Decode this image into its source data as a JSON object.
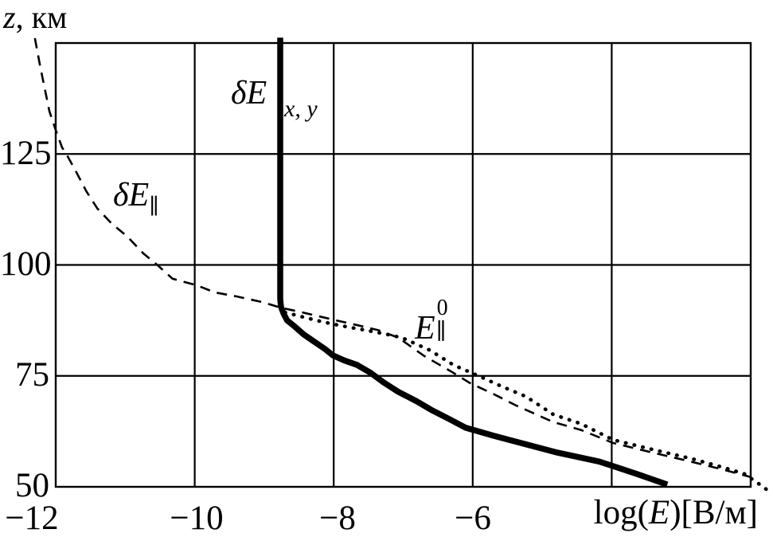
{
  "colors": {
    "background": "#ffffff",
    "ink": "#000000"
  },
  "axes": {
    "y_title": {
      "var": "z",
      "rest": ", км"
    },
    "x_title": {
      "prefix": "log(",
      "var": "E",
      "suffix": ")[В/м]"
    },
    "y_tick_labels": [
      "125",
      "100",
      "75",
      "50"
    ],
    "x_tick_labels": [
      "−12",
      "−10",
      "−8",
      "−6"
    ]
  },
  "curve_labels": {
    "dexy_main": "δE",
    "dexy_sub": "x, y",
    "depar_main": "δE",
    "depar_sub": "∥",
    "epar_main": "E",
    "epar_sup": "0",
    "epar_sub": "∥"
  },
  "chart_data": {
    "type": "line",
    "title": "",
    "xlabel": "log(E)[В/м]",
    "ylabel": "z, км",
    "xlim": [
      -12,
      -2
    ],
    "ylim": [
      50,
      150
    ],
    "x_ticks": [
      -12,
      -10,
      -8,
      -6
    ],
    "y_ticks": [
      50,
      75,
      100,
      125
    ],
    "x_gridlines": [
      -10,
      -8,
      -6,
      -4
    ],
    "y_gridlines": [
      75,
      100,
      125
    ],
    "grid": true,
    "frame": true,
    "legend": "inline-labels",
    "series": [
      {
        "name": "δE x,y",
        "id": "deltaE-xy",
        "style": "solid-thick",
        "color": "#000000",
        "points": [
          [
            -8.77,
            151.2
          ],
          [
            -8.77,
            92.3
          ],
          [
            -8.76,
            90.6
          ],
          [
            -8.72,
            89.0
          ],
          [
            -8.67,
            87.5
          ],
          [
            -8.56,
            86.1
          ],
          [
            -8.43,
            84.3
          ],
          [
            -8.28,
            82.7
          ],
          [
            -8.13,
            81.1
          ],
          [
            -8.01,
            79.6
          ],
          [
            -7.85,
            78.5
          ],
          [
            -7.67,
            77.5
          ],
          [
            -7.47,
            75.7
          ],
          [
            -7.28,
            73.5
          ],
          [
            -7.07,
            71.4
          ],
          [
            -6.81,
            69.3
          ],
          [
            -6.58,
            67.2
          ],
          [
            -6.33,
            65.2
          ],
          [
            -6.1,
            63.3
          ],
          [
            -5.7,
            61.5
          ],
          [
            -5.24,
            59.6
          ],
          [
            -4.78,
            57.7
          ],
          [
            -4.18,
            55.7
          ],
          [
            -3.64,
            52.9
          ],
          [
            -3.2,
            50.5
          ]
        ]
      },
      {
        "name": "δE ∥",
        "id": "deltaE-parallel",
        "style": "dashed",
        "color": "#000000",
        "points": [
          [
            -12.3,
            151.1
          ],
          [
            -12.23,
            145.3
          ],
          [
            -12.16,
            139.9
          ],
          [
            -12.09,
            134.6
          ],
          [
            -12.0,
            130.4
          ],
          [
            -11.91,
            126.5
          ],
          [
            -11.83,
            124.5
          ],
          [
            -11.71,
            121.1
          ],
          [
            -11.56,
            116.6
          ],
          [
            -11.4,
            112.7
          ],
          [
            -11.2,
            109.4
          ],
          [
            -10.97,
            106.4
          ],
          [
            -10.74,
            102.6
          ],
          [
            -10.53,
            99.9
          ],
          [
            -10.32,
            96.9
          ],
          [
            -9.97,
            95.4
          ],
          [
            -9.71,
            93.8
          ],
          [
            -9.4,
            92.9
          ],
          [
            -9.02,
            91.6
          ],
          [
            -8.77,
            90.4
          ],
          [
            -8.45,
            89.3
          ],
          [
            -7.99,
            87.6
          ],
          [
            -7.65,
            86.4
          ],
          [
            -7.36,
            85.3
          ],
          [
            -7.07,
            83.6
          ],
          [
            -6.7,
            79.5
          ],
          [
            -6.31,
            76.0
          ],
          [
            -6.04,
            73.4
          ],
          [
            -5.7,
            70.9
          ],
          [
            -5.36,
            68.2
          ],
          [
            -4.84,
            64.6
          ],
          [
            -4.44,
            62.8
          ],
          [
            -3.98,
            59.9
          ],
          [
            -3.41,
            57.7
          ],
          [
            -2.84,
            55.6
          ],
          [
            -2.38,
            53.8
          ],
          [
            -2.0,
            52.2
          ]
        ]
      },
      {
        "name": "E ∥ 0",
        "id": "E-parallel-0",
        "style": "dotted",
        "color": "#000000",
        "points": [
          [
            -8.7,
            89.3
          ],
          [
            -8.45,
            88.3
          ],
          [
            -8.22,
            87.4
          ],
          [
            -7.99,
            86.6
          ],
          [
            -7.76,
            85.9
          ],
          [
            -7.51,
            85.2
          ],
          [
            -7.28,
            84.5
          ],
          [
            -7.02,
            83.6
          ],
          [
            -6.62,
            80.8
          ],
          [
            -6.27,
            77.4
          ],
          [
            -5.93,
            75.1
          ],
          [
            -5.58,
            72.6
          ],
          [
            -5.24,
            70.4
          ],
          [
            -4.84,
            66.3
          ],
          [
            -4.44,
            64.2
          ],
          [
            -3.98,
            60.6
          ],
          [
            -3.41,
            58.4
          ],
          [
            -2.84,
            56.3
          ],
          [
            -2.38,
            54.3
          ],
          [
            -2.09,
            52.9
          ],
          [
            -1.92,
            51.1
          ],
          [
            -1.78,
            49.5
          ],
          [
            -1.71,
            48.6
          ]
        ]
      }
    ]
  }
}
